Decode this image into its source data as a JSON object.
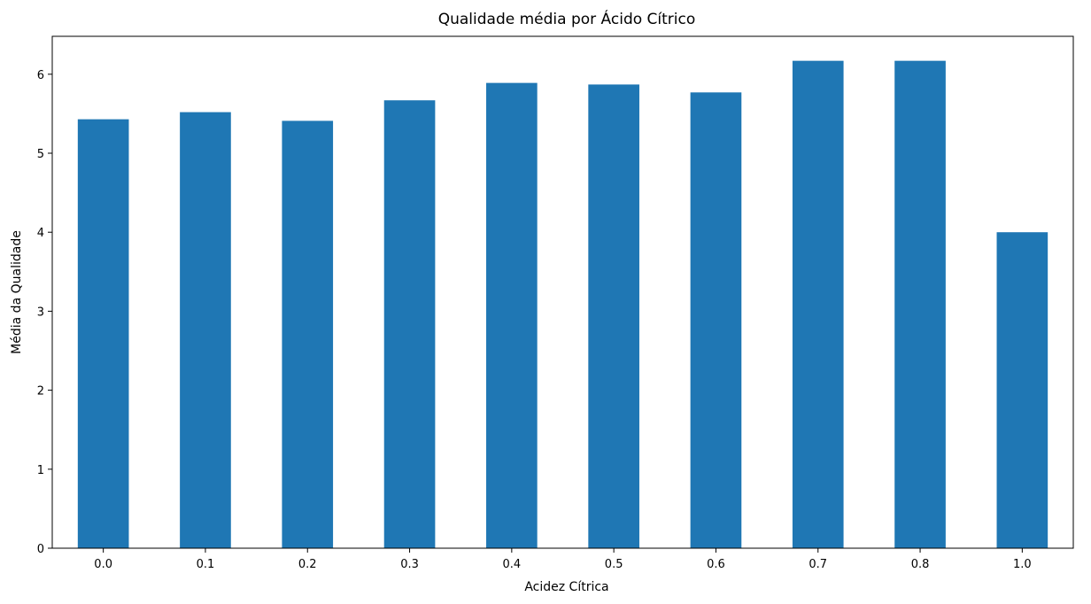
{
  "chart_data": {
    "type": "bar",
    "title": "Qualidade média por Ácido Cítrico",
    "xlabel": "Acidez Cítrica",
    "ylabel": "Média da Qualidade",
    "categories": [
      "0.0",
      "0.1",
      "0.2",
      "0.3",
      "0.4",
      "0.5",
      "0.6",
      "0.7",
      "0.8",
      "1.0"
    ],
    "values": [
      5.43,
      5.52,
      5.41,
      5.67,
      5.89,
      5.87,
      5.77,
      6.17,
      6.17,
      4.0
    ],
    "ylim": [
      0,
      6.48
    ],
    "yticks": [
      "0",
      "1",
      "2",
      "3",
      "4",
      "5",
      "6"
    ],
    "grid": false,
    "legend": "none",
    "bar_color": "#1f77b4"
  }
}
